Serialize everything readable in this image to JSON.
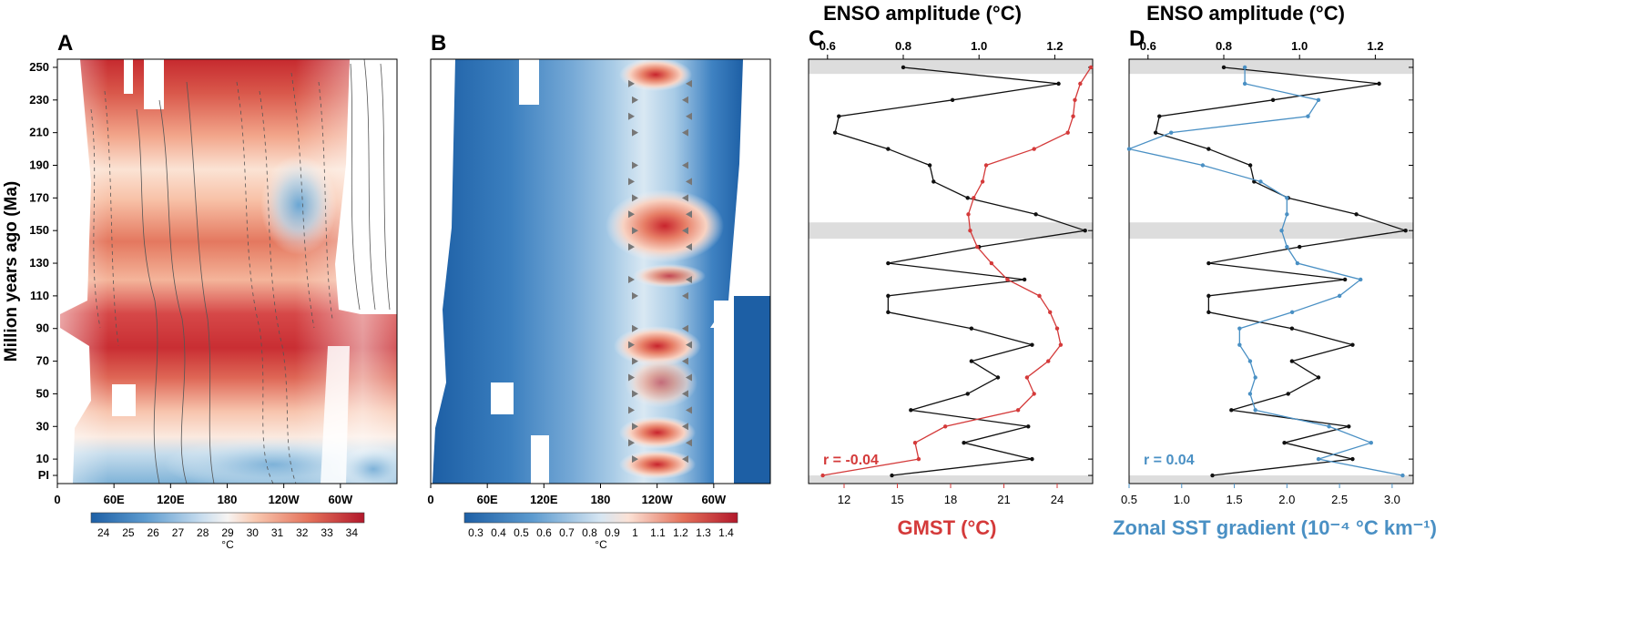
{
  "figure": {
    "ylabel": "Million years ago (Ma)",
    "y_ticks": [
      "250",
      "230",
      "210",
      "190",
      "170",
      "150",
      "130",
      "110",
      "90",
      "70",
      "50",
      "30",
      "10",
      "PI"
    ],
    "lon_ticks": [
      "0",
      "60E",
      "120E",
      "180",
      "120W",
      "60W"
    ]
  },
  "colors": {
    "black_series": "#111111",
    "gmst": "#d43a3a",
    "gradient": "#4a90c4",
    "shade": "#dddddd"
  },
  "chart_data": [
    {
      "panel": "A",
      "type": "heatmap",
      "label": "A",
      "colorbar": {
        "unit": "°C",
        "ticks": [
          "24",
          "25",
          "26",
          "27",
          "28",
          "29",
          "30",
          "31",
          "32",
          "33",
          "34"
        ]
      },
      "description_values": {
        "sst_range": [
          24,
          34
        ]
      }
    },
    {
      "panel": "B",
      "type": "heatmap",
      "label": "B",
      "colorbar": {
        "unit": "°C",
        "ticks": [
          "0.3",
          "0.4",
          "0.5",
          "0.6",
          "0.7",
          "0.8",
          "0.9",
          "1",
          "1.1",
          "1.2",
          "1.3",
          "1.4"
        ]
      },
      "description_values": {
        "enso_amplitude_range": [
          0.3,
          1.4
        ]
      }
    },
    {
      "panel": "C",
      "type": "line",
      "label": "C",
      "title": "ENSO amplitude (°C)",
      "top_axis": {
        "range": [
          0.55,
          1.3
        ],
        "ticks": [
          "0.6",
          "0.8",
          "1.0",
          "1.2"
        ]
      },
      "bottom_axis": {
        "label": "GMST (°C)",
        "range": [
          10,
          26
        ],
        "ticks": [
          "12",
          "15",
          "18",
          "21",
          "24"
        ]
      },
      "r_label": "r = -0.04",
      "shaded_bands_ma": [
        [
          246,
          255
        ],
        [
          145,
          155
        ],
        [
          -5,
          0
        ]
      ],
      "series": [
        {
          "axis": "top",
          "points": [
            [
              250,
              0.8
            ],
            [
              240,
              1.21
            ],
            [
              230,
              0.93
            ],
            [
              220,
              0.63
            ],
            [
              210,
              0.62
            ],
            [
              200,
              0.76
            ],
            [
              190,
              0.87
            ],
            [
              180,
              0.88
            ],
            [
              170,
              0.97
            ],
            [
              160,
              1.15
            ],
            [
              150,
              1.28
            ],
            [
              140,
              1.0
            ],
            [
              130,
              0.76
            ],
            [
              120,
              1.12
            ],
            [
              110,
              0.76
            ],
            [
              100,
              0.76
            ],
            [
              90,
              0.98
            ],
            [
              80,
              1.14
            ],
            [
              70,
              0.98
            ],
            [
              60,
              1.05
            ],
            [
              50,
              0.97
            ],
            [
              40,
              0.82
            ],
            [
              30,
              1.13
            ],
            [
              20,
              0.96
            ],
            [
              10,
              1.14
            ],
            [
              0,
              0.77
            ]
          ]
        },
        {
          "axis": "bottom",
          "points": [
            [
              250,
              25.9
            ],
            [
              240,
              25.3
            ],
            [
              230,
              25.0
            ],
            [
              220,
              24.9
            ],
            [
              210,
              24.6
            ],
            [
              200,
              22.7
            ],
            [
              190,
              20.0
            ],
            [
              180,
              19.8
            ],
            [
              170,
              19.3
            ],
            [
              160,
              19.0
            ],
            [
              150,
              19.1
            ],
            [
              140,
              19.5
            ],
            [
              130,
              20.3
            ],
            [
              120,
              21.2
            ],
            [
              110,
              23.0
            ],
            [
              100,
              23.6
            ],
            [
              90,
              24.0
            ],
            [
              80,
              24.2
            ],
            [
              70,
              23.5
            ],
            [
              60,
              22.3
            ],
            [
              50,
              22.7
            ],
            [
              40,
              21.8
            ],
            [
              30,
              17.7
            ],
            [
              20,
              16.0
            ],
            [
              10,
              16.2
            ],
            [
              0,
              10.8
            ]
          ]
        }
      ]
    },
    {
      "panel": "D",
      "type": "line",
      "label": "D",
      "title": "ENSO amplitude (°C)",
      "top_axis": {
        "range": [
          0.55,
          1.3
        ],
        "ticks": [
          "0.6",
          "0.8",
          "1.0",
          "1.2"
        ]
      },
      "bottom_axis": {
        "label": "Zonal SST gradient (10⁻⁴ °C km⁻¹)",
        "range": [
          0.5,
          3.2
        ],
        "ticks": [
          "0.5",
          "1.0",
          "1.5",
          "2.0",
          "2.5",
          "3.0"
        ]
      },
      "r_label": "r =  0.04",
      "shaded_bands_ma": [
        [
          246,
          255
        ],
        [
          145,
          155
        ],
        [
          -5,
          0
        ]
      ],
      "series": [
        {
          "axis": "top",
          "points": [
            [
              250,
              0.8
            ],
            [
              240,
              1.21
            ],
            [
              230,
              0.93
            ],
            [
              220,
              0.63
            ],
            [
              210,
              0.62
            ],
            [
              200,
              0.76
            ],
            [
              190,
              0.87
            ],
            [
              180,
              0.88
            ],
            [
              170,
              0.97
            ],
            [
              160,
              1.15
            ],
            [
              150,
              1.28
            ],
            [
              140,
              1.0
            ],
            [
              130,
              0.76
            ],
            [
              120,
              1.12
            ],
            [
              110,
              0.76
            ],
            [
              100,
              0.76
            ],
            [
              90,
              0.98
            ],
            [
              80,
              1.14
            ],
            [
              70,
              0.98
            ],
            [
              60,
              1.05
            ],
            [
              50,
              0.97
            ],
            [
              40,
              0.82
            ],
            [
              30,
              1.13
            ],
            [
              20,
              0.96
            ],
            [
              10,
              1.14
            ],
            [
              0,
              0.77
            ]
          ]
        },
        {
          "axis": "bottom",
          "points": [
            [
              250,
              1.6
            ],
            [
              240,
              1.6
            ],
            [
              230,
              2.3
            ],
            [
              220,
              2.2
            ],
            [
              210,
              0.9
            ],
            [
              200,
              0.5
            ],
            [
              190,
              1.2
            ],
            [
              180,
              1.75
            ],
            [
              170,
              2.0
            ],
            [
              160,
              2.0
            ],
            [
              150,
              1.95
            ],
            [
              140,
              2.0
            ],
            [
              130,
              2.1
            ],
            [
              120,
              2.7
            ],
            [
              110,
              2.5
            ],
            [
              100,
              2.05
            ],
            [
              90,
              1.55
            ],
            [
              80,
              1.55
            ],
            [
              70,
              1.65
            ],
            [
              60,
              1.7
            ],
            [
              50,
              1.65
            ],
            [
              40,
              1.7
            ],
            [
              30,
              2.4
            ],
            [
              20,
              2.8
            ],
            [
              10,
              2.3
            ],
            [
              0,
              3.1
            ]
          ]
        }
      ]
    }
  ]
}
